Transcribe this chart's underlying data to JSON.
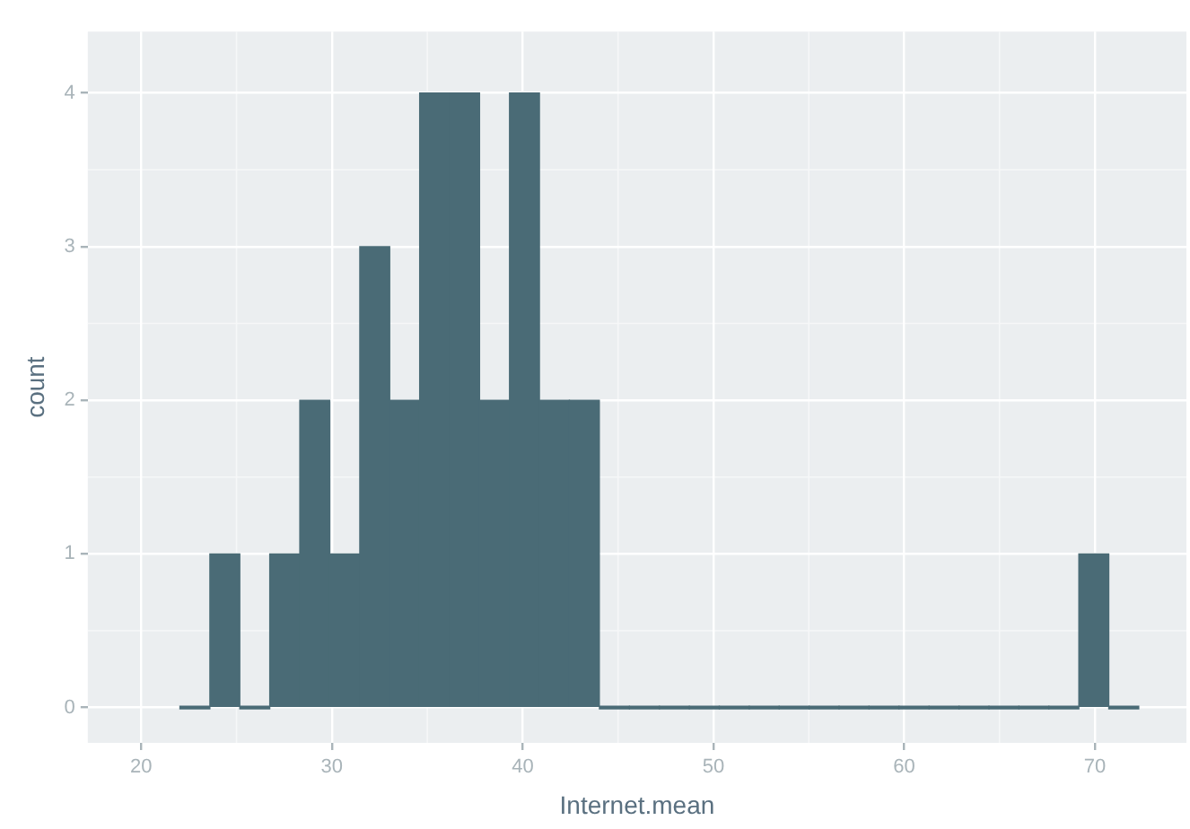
{
  "chart_data": {
    "type": "histogram",
    "xlabel": "Internet.mean",
    "ylabel": "count",
    "bins": [
      22.03,
      23.6,
      25.17,
      26.74,
      28.31,
      29.89,
      31.46,
      33.03,
      34.6,
      36.17,
      37.74,
      39.31,
      40.88,
      42.45,
      44.02,
      45.6,
      47.17,
      48.74,
      50.31,
      51.88,
      53.45,
      55.02,
      56.59,
      58.16,
      59.73,
      61.31,
      62.88,
      64.45,
      66.02,
      67.59,
      69.16,
      70.73,
      72.3
    ],
    "values": [
      0,
      1,
      0,
      1,
      2,
      1,
      3,
      2,
      4,
      4,
      2,
      4,
      2,
      2,
      0,
      0,
      0,
      0,
      0,
      0,
      0,
      0,
      0,
      0,
      0,
      0,
      0,
      0,
      0,
      0,
      1,
      0
    ],
    "color": "#4a6b76",
    "xlim": [
      17.2,
      74.8
    ],
    "xticks": [
      20,
      30,
      40,
      50,
      60,
      70
    ],
    "ylim": [
      -0.23,
      4.4
    ],
    "yticks": [
      0,
      1,
      2,
      3,
      4
    ],
    "grid": true
  }
}
